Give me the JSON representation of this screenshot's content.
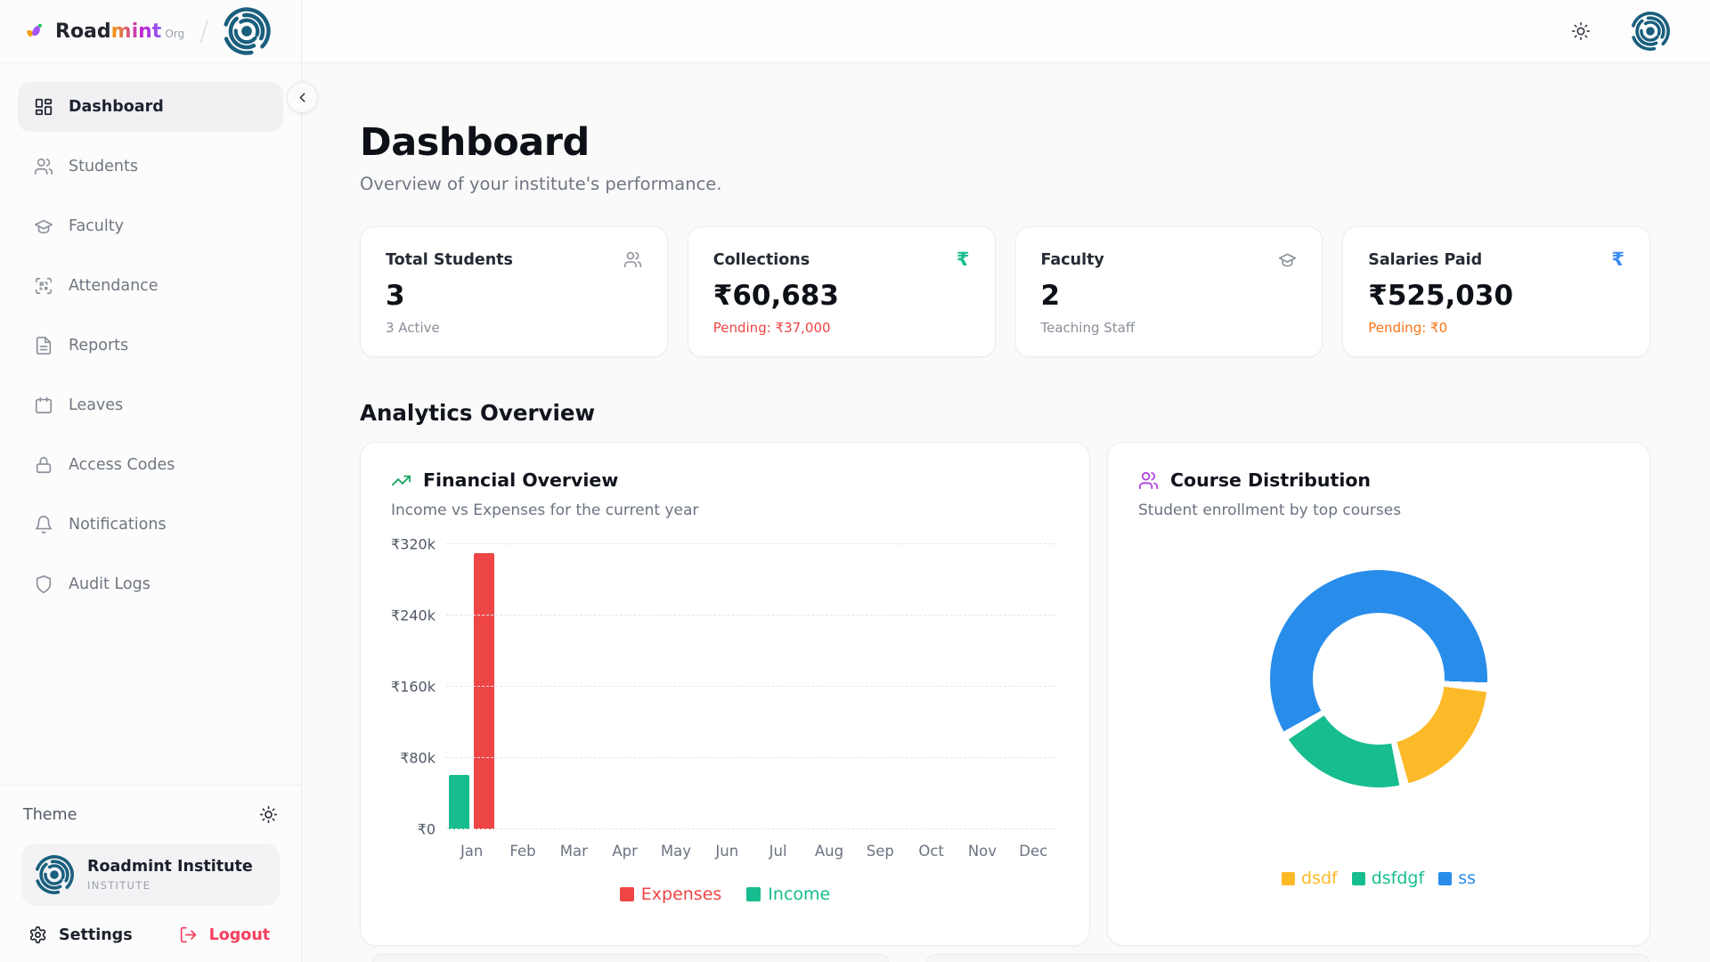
{
  "brand": {
    "word_primary": "Road",
    "word_accent": "mint",
    "org_suffix": "Org",
    "divider": "/"
  },
  "sidebar": {
    "items": [
      {
        "label": "Dashboard",
        "active": true
      },
      {
        "label": "Students",
        "active": false
      },
      {
        "label": "Faculty",
        "active": false
      },
      {
        "label": "Attendance",
        "active": false
      },
      {
        "label": "Reports",
        "active": false
      },
      {
        "label": "Leaves",
        "active": false
      },
      {
        "label": "Access Codes",
        "active": false
      },
      {
        "label": "Notifications",
        "active": false
      },
      {
        "label": "Audit Logs",
        "active": false
      }
    ],
    "theme_label": "Theme",
    "org_card": {
      "name": "Roadmint Institute",
      "type": "INSTITUTE"
    },
    "settings_label": "Settings",
    "logout_label": "Logout"
  },
  "page": {
    "title": "Dashboard",
    "subtitle": "Overview of your institute's performance.",
    "analytics_heading": "Analytics Overview"
  },
  "stats": [
    {
      "label": "Total Students",
      "value": "3",
      "sub": "3 Active",
      "icon": "users-icon"
    },
    {
      "label": "Collections",
      "value": "₹60,683",
      "sub": "Pending: ₹37,000",
      "icon": "rupee-icon"
    },
    {
      "label": "Faculty",
      "value": "2",
      "sub": "Teaching Staff",
      "icon": "graduation-cap-icon"
    },
    {
      "label": "Salaries Paid",
      "value": "₹525,030",
      "sub": "Pending: ₹0",
      "icon": "rupee-icon"
    }
  ],
  "chart_data": [
    {
      "type": "bar",
      "title": "Financial Overview",
      "subtitle": "Income vs Expenses for the current year",
      "categories": [
        "Jan",
        "Feb",
        "Mar",
        "Apr",
        "May",
        "Jun",
        "Jul",
        "Aug",
        "Sep",
        "Oct",
        "Nov",
        "Dec"
      ],
      "series": [
        {
          "name": "Income",
          "color": "#17bd8e",
          "values": [
            60683,
            0,
            0,
            0,
            0,
            0,
            0,
            0,
            0,
            0,
            0,
            0
          ]
        },
        {
          "name": "Expenses",
          "color": "#ee4545",
          "values": [
            310000,
            0,
            0,
            0,
            0,
            0,
            0,
            0,
            0,
            0,
            0,
            0
          ]
        }
      ],
      "legend": [
        {
          "label": "Expenses",
          "color": "#ee4545"
        },
        {
          "label": "Income",
          "color": "#17bd8e"
        }
      ],
      "ylim": [
        0,
        320000
      ],
      "yticks": [
        {
          "value": 0,
          "label": "₹0"
        },
        {
          "value": 80000,
          "label": "₹80k"
        },
        {
          "value": 160000,
          "label": "₹160k"
        },
        {
          "value": 240000,
          "label": "₹240k"
        },
        {
          "value": 320000,
          "label": "₹320k"
        }
      ],
      "grid": "dashed-horizontal",
      "legend_position": "bottom"
    },
    {
      "type": "donut",
      "title": "Course Distribution",
      "subtitle": "Student enrollment by top courses",
      "segments": [
        {
          "label": "dsdf",
          "value": 1,
          "color": "#fcba28"
        },
        {
          "label": "dsfdgf",
          "value": 1,
          "color": "#17bd8e"
        },
        {
          "label": "ss",
          "value": 3,
          "color": "#288ceb"
        }
      ],
      "start_angle": 97,
      "gap_deg": 5,
      "legend_position": "bottom"
    }
  ],
  "colors": {
    "brand_teal": "#1a5f7e",
    "icon_purple": "#b44ae0",
    "trend_green": "#1fa968",
    "pending_red": "#ef4444",
    "pending_orange": "#f97316",
    "logout_red": "#f43f5e",
    "rupee_green": "#17bd8e",
    "rupee_blue": "#3b8df2",
    "active_item_bg": "#f1f1f3"
  }
}
